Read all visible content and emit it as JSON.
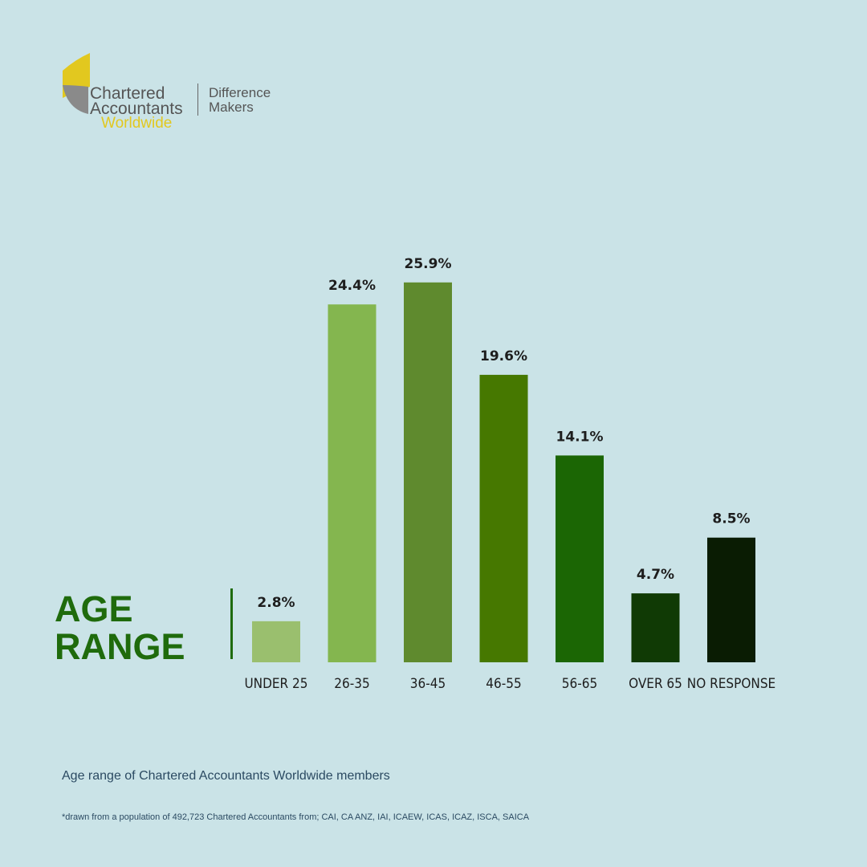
{
  "logo": {
    "line1": "Chartered",
    "line2": "Accountants",
    "line3": "Worldwide",
    "tagline1": "Difference",
    "tagline2": "Makers",
    "colors": {
      "yellow": "#e2c81f",
      "gray": "#555555"
    }
  },
  "title": {
    "line1": "AGE",
    "line2": "RANGE"
  },
  "caption": "Age range of Chartered Accountants Worldwide members",
  "footnote": "*drawn from a population of 492,723 Chartered Accountants from; CAI, CA ANZ, IAI, ICAEW, ICAS, ICAZ, ISCA, SAICA",
  "chart_data": {
    "type": "bar",
    "categories": [
      "UNDER 25",
      "26-35",
      "36-45",
      "46-55",
      "56-65",
      "OVER 65",
      "NO RESPONSE"
    ],
    "values": [
      2.8,
      24.4,
      25.9,
      19.6,
      14.1,
      4.7,
      8.5
    ],
    "labels": [
      "2.8%",
      "24.4%",
      "25.9%",
      "19.6%",
      "14.1%",
      "4.7%",
      "8.5%"
    ],
    "colors": [
      "#9abf6e",
      "#84b64f",
      "#5f8a2e",
      "#467800",
      "#1b6604",
      "#103a05",
      "#0a1c03"
    ],
    "unit": "%",
    "ylim": [
      0,
      26
    ],
    "grid": false,
    "axes_visible": false
  }
}
